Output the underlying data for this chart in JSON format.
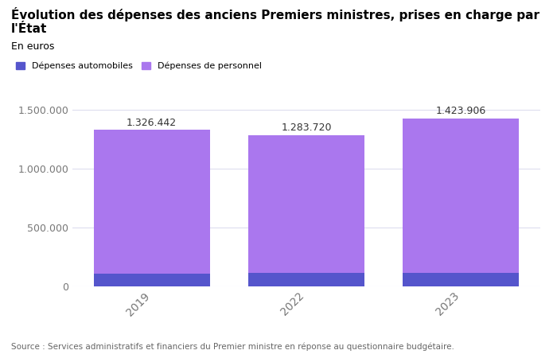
{
  "years": [
    "2019",
    "2022",
    "2023"
  ],
  "auto_values": [
    105000,
    118000,
    118000
  ],
  "personnel_values": [
    1221442,
    1165720,
    1305906
  ],
  "totals": [
    1326442,
    1283720,
    1423906
  ],
  "total_labels": [
    "1.326.442",
    "1.283.720",
    "1.423.906"
  ],
  "color_auto": "#5555cc",
  "color_personnel": "#aa77ee",
  "title": "Évolution des dépenses des anciens Premiers ministres, prises en charge par l'État",
  "subtitle": "En euros",
  "legend_auto": "Dépenses automobiles",
  "legend_personnel": "Dépenses de personnel",
  "source": "Source : Services administratifs et financiers du Premier ministre en réponse au questionnaire budgétaire.",
  "ylim": [
    0,
    1700000
  ],
  "yticks": [
    0,
    500000,
    1000000,
    1500000
  ],
  "ytick_labels": [
    "0",
    "500.000",
    "1.000.000",
    "1.500.000"
  ],
  "bar_width": 0.75,
  "background_color": "#ffffff",
  "grid_color": "#ddddee",
  "text_color": "#333333",
  "tick_color": "#777777"
}
